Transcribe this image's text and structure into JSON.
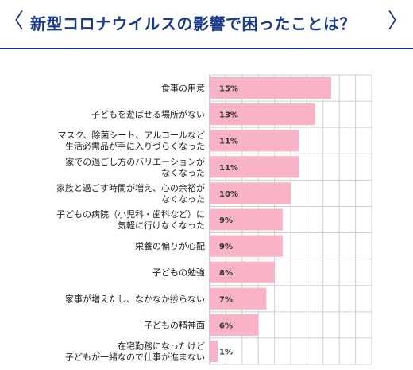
{
  "header": {
    "title": "新型コロナウイルスの影響で困ったことは？",
    "prev_glyph": "〈",
    "next_glyph": "〉"
  },
  "colors": {
    "accent": "#1a3a8c",
    "bar": "#f9b3c6",
    "grid": "#cfcfcf"
  },
  "chart_data": {
    "type": "bar",
    "orientation": "horizontal",
    "xlim": [
      0,
      20
    ],
    "grid": true,
    "categories": [
      [
        "食事の用意"
      ],
      [
        "子どもを遊ばせる場所がない"
      ],
      [
        "マスク、除菌シート、アルコールなど",
        "生活必需品が手に入りづらくなった"
      ],
      [
        "家での過ごし方のバリエーションが",
        "なくなった"
      ],
      [
        "家族と過ごす時間が増え、心の余裕が",
        "なくなった"
      ],
      [
        "子どもの病院（小児科・歯科など）に",
        "気軽に行けなくなった"
      ],
      [
        "栄養の偏りが心配"
      ],
      [
        "子どもの勉強"
      ],
      [
        "家事が増えたし、なかなか捗らない"
      ],
      [
        "子どもの精神面"
      ],
      [
        "在宅勤務になったけど",
        "子どもが一緒なので仕事が進まない"
      ]
    ],
    "values": [
      15,
      13,
      11,
      11,
      10,
      9,
      9,
      8,
      7,
      6,
      1
    ],
    "labels": [
      "15%",
      "13%",
      "11%",
      "11%",
      "10%",
      "9%",
      "9%",
      "8%",
      "7%",
      "6%",
      "1%"
    ]
  }
}
